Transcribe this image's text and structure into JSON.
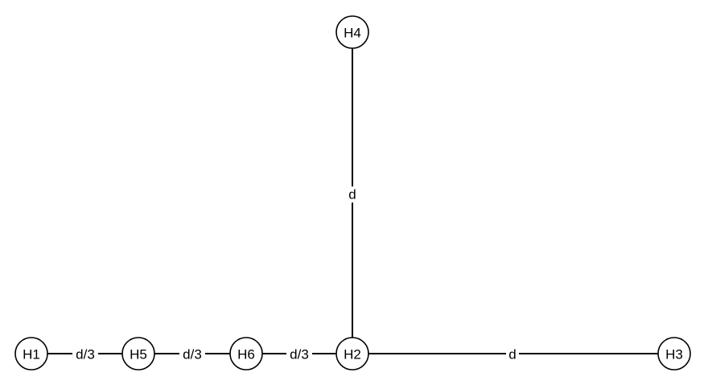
{
  "nodes": [
    {
      "id": "H1",
      "label": "H1"
    },
    {
      "id": "H5",
      "label": "H5"
    },
    {
      "id": "H6",
      "label": "H6"
    },
    {
      "id": "H2",
      "label": "H2"
    },
    {
      "id": "H3",
      "label": "H3"
    },
    {
      "id": "H4",
      "label": "H4"
    }
  ],
  "edges": [
    {
      "from": "H1",
      "to": "H5",
      "label": "d/3"
    },
    {
      "from": "H5",
      "to": "H6",
      "label": "d/3"
    },
    {
      "from": "H6",
      "to": "H2",
      "label": "d/3"
    },
    {
      "from": "H2",
      "to": "H3",
      "label": "d"
    },
    {
      "from": "H2",
      "to": "H4",
      "label": "d"
    }
  ],
  "colors": {
    "stroke": "#000000",
    "background": "#ffffff"
  }
}
